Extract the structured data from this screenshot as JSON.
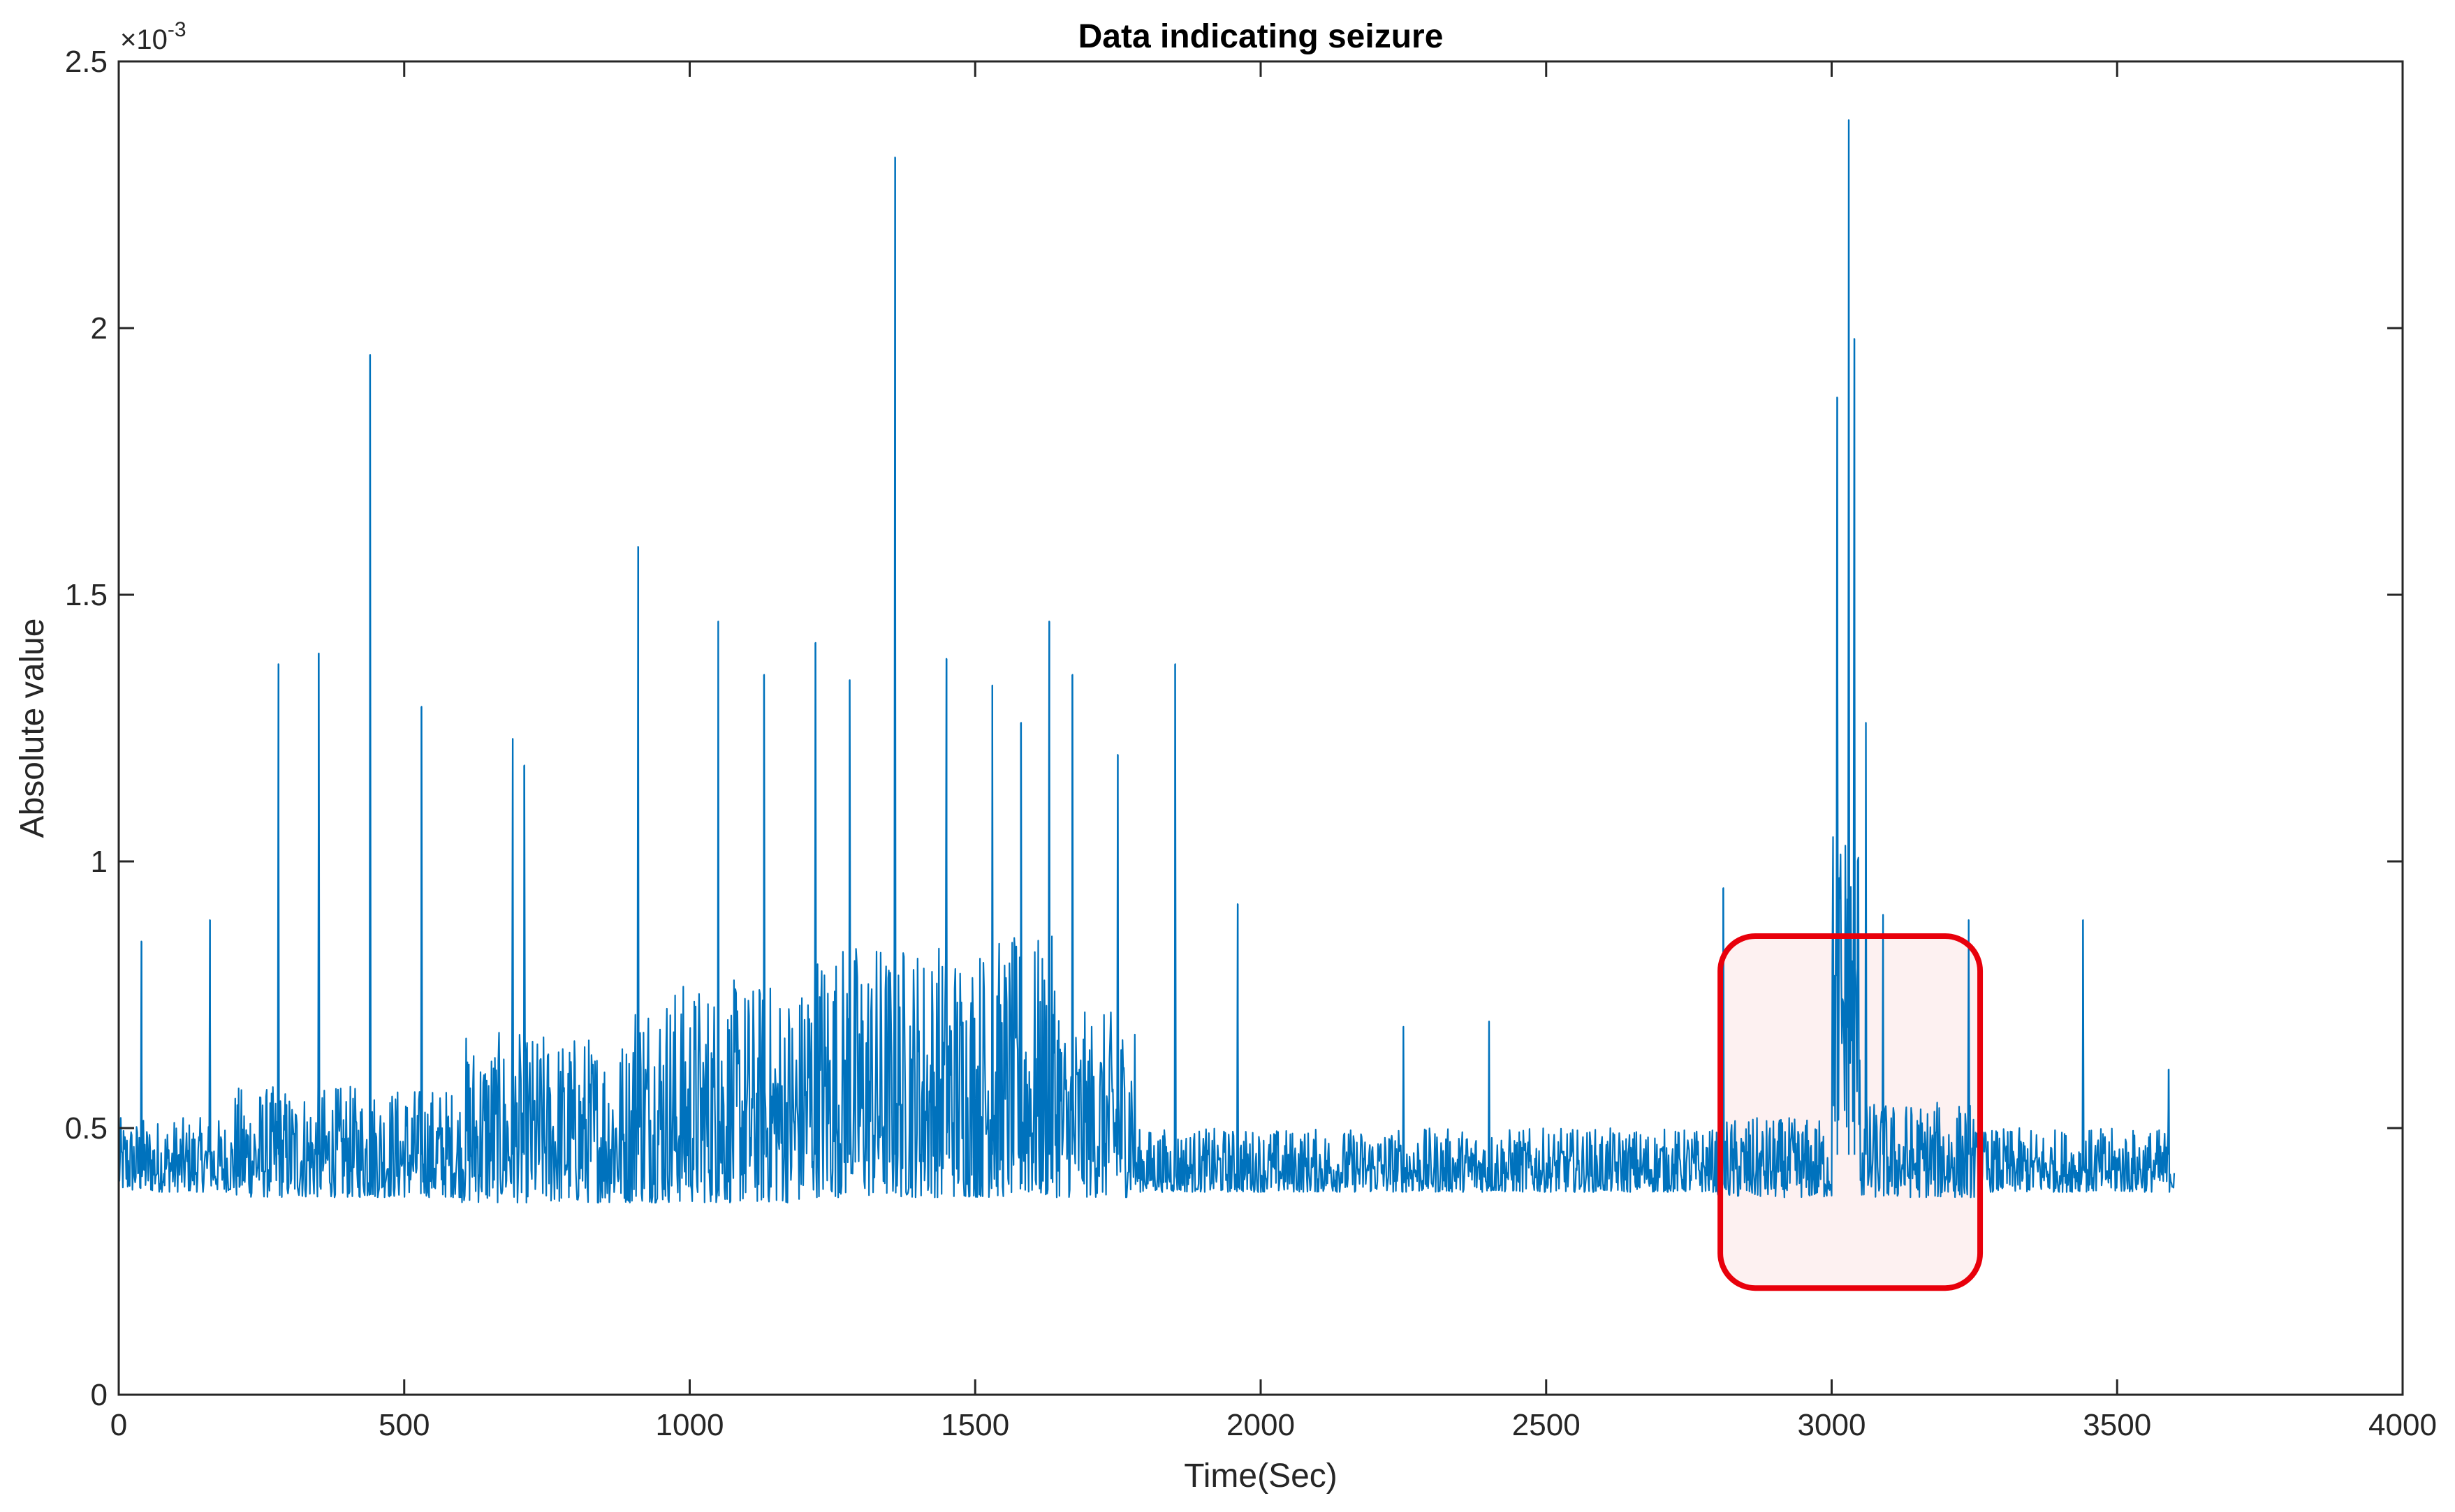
{
  "chart_data": {
    "type": "line",
    "title": "Data indicating seizure",
    "xlabel": "Time(Sec)",
    "ylabel": "Absolute value",
    "y_exponent_label": "×10",
    "y_exponent_power": "-3",
    "xlim": [
      0,
      4000
    ],
    "ylim": [
      0,
      2.5
    ],
    "y_scale_factor": 0.001,
    "x_ticks": [
      0,
      500,
      1000,
      1500,
      2000,
      2500,
      3000,
      3500,
      4000
    ],
    "x_tick_labels": [
      "0",
      "500",
      "1000",
      "1500",
      "2000",
      "2500",
      "3000",
      "3500",
      "4000"
    ],
    "y_ticks": [
      0,
      0.5,
      1,
      1.5,
      2,
      2.5
    ],
    "y_tick_labels": [
      "0",
      "0.5",
      "1",
      "1.5",
      "2",
      "2.5"
    ],
    "grid": false,
    "series": [
      {
        "color": "#0072BD",
        "baseline_segments": [
          {
            "x_start": 0,
            "x_end": 200,
            "low": 0.38,
            "high": 0.52
          },
          {
            "x_start": 200,
            "x_end": 600,
            "low": 0.37,
            "high": 0.58
          },
          {
            "x_start": 600,
            "x_end": 900,
            "low": 0.36,
            "high": 0.68
          },
          {
            "x_start": 900,
            "x_end": 1200,
            "low": 0.36,
            "high": 0.78
          },
          {
            "x_start": 1200,
            "x_end": 1650,
            "low": 0.37,
            "high": 0.86
          },
          {
            "x_start": 1650,
            "x_end": 1780,
            "low": 0.37,
            "high": 0.72
          },
          {
            "x_start": 1780,
            "x_end": 2800,
            "low": 0.38,
            "high": 0.5
          },
          {
            "x_start": 2800,
            "x_end": 3000,
            "low": 0.37,
            "high": 0.52
          },
          {
            "x_start": 3000,
            "x_end": 3050,
            "low": 0.5,
            "high": 1.1
          },
          {
            "x_start": 3050,
            "x_end": 3250,
            "low": 0.37,
            "high": 0.55
          },
          {
            "x_start": 3250,
            "x_end": 3600,
            "low": 0.38,
            "high": 0.5
          }
        ],
        "spikes": [
          {
            "x": 40,
            "y": 0.85
          },
          {
            "x": 160,
            "y": 0.89
          },
          {
            "x": 280,
            "y": 1.37
          },
          {
            "x": 350,
            "y": 1.39
          },
          {
            "x": 440,
            "y": 1.95
          },
          {
            "x": 530,
            "y": 1.29
          },
          {
            "x": 690,
            "y": 1.23
          },
          {
            "x": 710,
            "y": 1.18
          },
          {
            "x": 910,
            "y": 1.59
          },
          {
            "x": 1050,
            "y": 1.45
          },
          {
            "x": 1130,
            "y": 1.35
          },
          {
            "x": 1220,
            "y": 1.41
          },
          {
            "x": 1280,
            "y": 1.34
          },
          {
            "x": 1360,
            "y": 2.32
          },
          {
            "x": 1450,
            "y": 1.38
          },
          {
            "x": 1530,
            "y": 1.33
          },
          {
            "x": 1580,
            "y": 1.26
          },
          {
            "x": 1630,
            "y": 1.45
          },
          {
            "x": 1670,
            "y": 1.35
          },
          {
            "x": 1750,
            "y": 1.2
          },
          {
            "x": 1850,
            "y": 1.37
          },
          {
            "x": 1960,
            "y": 0.92
          },
          {
            "x": 2250,
            "y": 0.69
          },
          {
            "x": 2400,
            "y": 0.7
          },
          {
            "x": 2810,
            "y": 0.95
          },
          {
            "x": 3010,
            "y": 1.87
          },
          {
            "x": 3030,
            "y": 2.39
          },
          {
            "x": 3040,
            "y": 1.98
          },
          {
            "x": 3060,
            "y": 1.26
          },
          {
            "x": 3090,
            "y": 0.9
          },
          {
            "x": 3240,
            "y": 0.89
          },
          {
            "x": 3440,
            "y": 0.89
          },
          {
            "x": 3590,
            "y": 0.61
          }
        ]
      }
    ],
    "annotations": [
      {
        "type": "highlight-box",
        "x_range": [
          2805,
          3260
        ],
        "y_range": [
          0.2,
          0.86
        ],
        "edge_color": "#E8000B",
        "fill_color": "#FCECEC"
      }
    ]
  }
}
